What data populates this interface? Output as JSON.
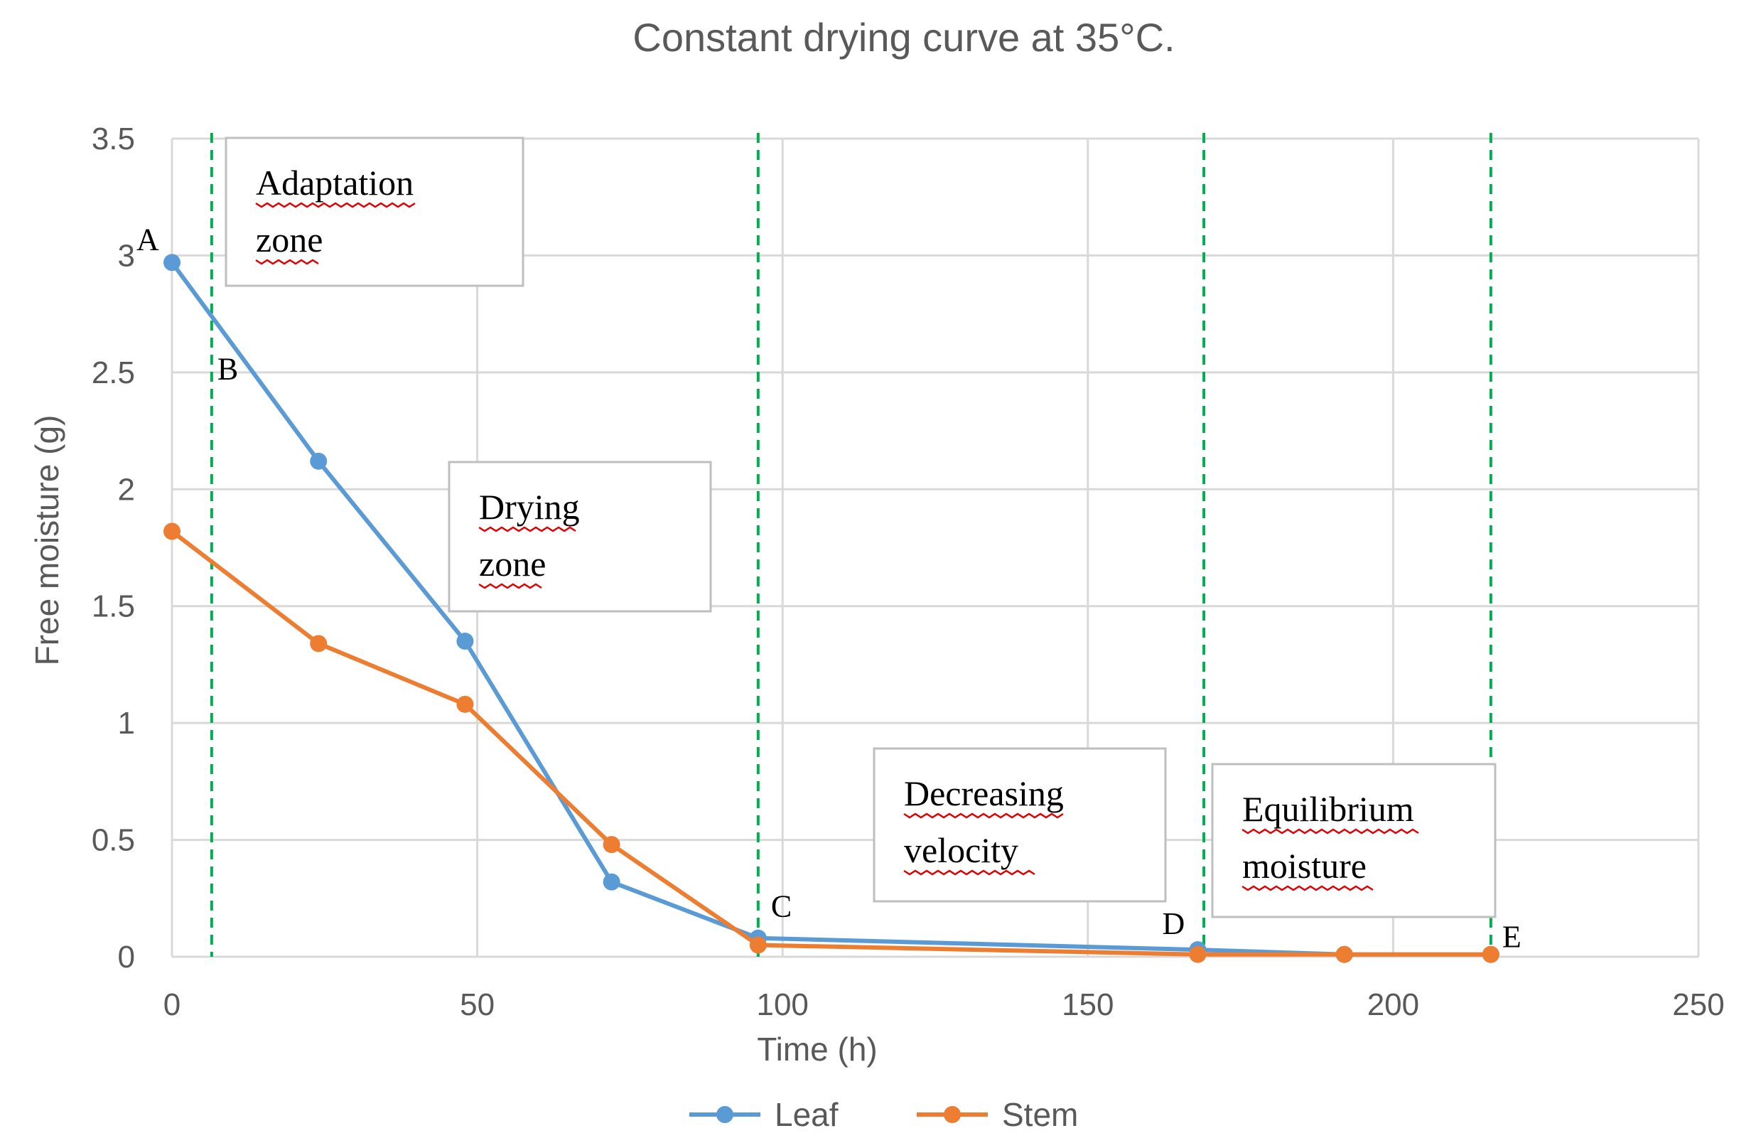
{
  "chart_data": {
    "type": "line",
    "title": "Constant drying curve at 35°C.",
    "xlabel": "Time (h)",
    "ylabel": "Free moisture (g)",
    "xlim": [
      0,
      250
    ],
    "ylim": [
      0,
      3.5
    ],
    "x_ticks": [
      "0",
      "50",
      "100",
      "150",
      "200",
      "250"
    ],
    "y_ticks": [
      "0",
      "0.5",
      "1",
      "1.5",
      "2",
      "2.5",
      "3",
      "3.5"
    ],
    "grid": true,
    "legend_position": "bottom",
    "series": [
      {
        "name": "Leaf",
        "color": "#5B9BD5",
        "x": [
          0,
          24,
          48,
          72,
          96,
          168,
          192,
          216
        ],
        "y": [
          2.97,
          2.12,
          1.35,
          0.32,
          0.08,
          0.03,
          0.01,
          0.01
        ]
      },
      {
        "name": "Stem",
        "color": "#ED7D31",
        "x": [
          0,
          24,
          48,
          72,
          96,
          168,
          192,
          216
        ],
        "y": [
          1.82,
          1.34,
          1.08,
          0.48,
          0.05,
          0.01,
          0.01,
          0.01
        ]
      }
    ],
    "zone_boundaries": {
      "color": "#00B050",
      "x": [
        6.5,
        96,
        169,
        216
      ]
    },
    "zones": [
      {
        "name": "adaptation",
        "lines": [
          "Adaptation",
          "zone"
        ]
      },
      {
        "name": "drying",
        "lines": [
          "Drying",
          "zone"
        ]
      },
      {
        "name": "decreasing",
        "lines": [
          "Decreasing",
          "velocity"
        ]
      },
      {
        "name": "equilibrium",
        "lines": [
          "Equilibrium",
          "moisture"
        ]
      }
    ],
    "point_labels": [
      {
        "text": "A",
        "x": 0,
        "y": 2.97
      },
      {
        "text": "B",
        "x": 6.5,
        "y": 2.72
      },
      {
        "text": "C",
        "x": 96,
        "y": 0.08
      },
      {
        "text": "D",
        "x": 168,
        "y": 0.03
      },
      {
        "text": "E",
        "x": 216,
        "y": 0.01
      }
    ]
  }
}
